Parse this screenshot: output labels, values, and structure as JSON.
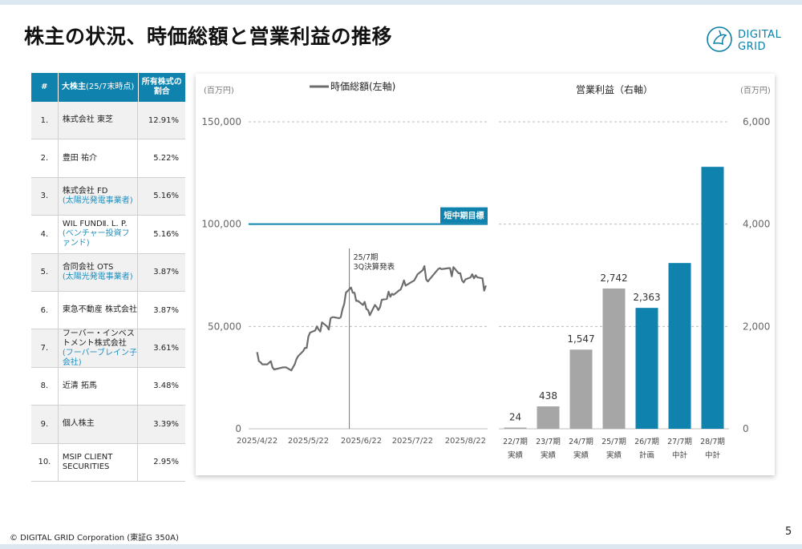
{
  "title": "株主の状況、時価総額と営業利益の推移",
  "logo": {
    "line1": "DIGITAL",
    "line2": "GRID"
  },
  "table": {
    "headers": {
      "no": "#",
      "holder": "大株主",
      "holder_sub": "(25/7末時点)",
      "ratio_line1": "所有株式の",
      "ratio_line2": "割合"
    },
    "rows": [
      {
        "no": "1.",
        "name": "株式会社 東芝",
        "sub": "",
        "ratio": "12.91%"
      },
      {
        "no": "2.",
        "name": "豊田 祐介",
        "sub": "",
        "ratio": "5.22%"
      },
      {
        "no": "3.",
        "name": "株式会社 FD",
        "sub": "(太陽光発電事業者)",
        "ratio": "5.16%"
      },
      {
        "no": "4.",
        "name": "WIL FUNDⅡ. L. P.",
        "sub": "(ベンチャー投資ファンド)",
        "ratio": "5.16%"
      },
      {
        "no": "5.",
        "name": "合同会社 OTS",
        "sub": "(太陽光発電事業者)",
        "ratio": "3.87%"
      },
      {
        "no": "6.",
        "name": "東急不動産 株式会社",
        "sub": "",
        "ratio": "3.87%"
      },
      {
        "no": "7.",
        "name": "フーバー・インベストメント株式会社",
        "sub": "(フーバーブレイン子会社)",
        "ratio": "3.61%"
      },
      {
        "no": "8.",
        "name": "近清 拓馬",
        "sub": "",
        "ratio": "3.48%"
      },
      {
        "no": "9.",
        "name": "個人株主",
        "sub": "",
        "ratio": "3.39%"
      },
      {
        "no": "10.",
        "name": "MSIP CLIENT SECURITIES",
        "sub": "",
        "ratio": "2.95%"
      }
    ]
  },
  "chart_data": [
    {
      "type": "line",
      "legend": "時価総額(左軸)",
      "unit_label": "(百万円)",
      "ylim": [
        0,
        150000
      ],
      "yticks": [
        "0",
        "50,000",
        "100,000",
        "150,000"
      ],
      "xtick_labels": [
        "2025/4/22",
        "2025/5/22",
        "2025/6/22",
        "2025/7/22",
        "2025/8/22"
      ],
      "target_line": {
        "value": 100000,
        "label": "短中期目標"
      },
      "event": {
        "date": "2025/6/15",
        "label_line1": "25/7期",
        "label_line2": "3Q決算発表"
      },
      "grid": "horizontal dashed",
      "series": [
        {
          "name": "時価総額(左軸)",
          "color": "#6d6d6d",
          "x": [
            "2025/4/22",
            "2025/4/23",
            "2025/4/24",
            "2025/4/25",
            "2025/4/28",
            "2025/4/30",
            "2025/5/1",
            "2025/5/2",
            "2025/5/7",
            "2025/5/8",
            "2025/5/9",
            "2025/5/12",
            "2025/5/13",
            "2025/5/14",
            "2025/5/15",
            "2025/5/16",
            "2025/5/19",
            "2025/5/20",
            "2025/5/21",
            "2025/5/22",
            "2025/5/23",
            "2025/5/26",
            "2025/5/27",
            "2025/5/28",
            "2025/5/29",
            "2025/5/30",
            "2025/6/2",
            "2025/6/3",
            "2025/6/4",
            "2025/6/5",
            "2025/6/6",
            "2025/6/9",
            "2025/6/10",
            "2025/6/11",
            "2025/6/12",
            "2025/6/13",
            "2025/6/16",
            "2025/6/17",
            "2025/6/18",
            "2025/6/19",
            "2025/6/20",
            "2025/6/23",
            "2025/6/24",
            "2025/6/25",
            "2025/6/26",
            "2025/6/27",
            "2025/6/30",
            "2025/7/1",
            "2025/7/2",
            "2025/7/3",
            "2025/7/4",
            "2025/7/7",
            "2025/7/8",
            "2025/7/9",
            "2025/7/10",
            "2025/7/11",
            "2025/7/14",
            "2025/7/15",
            "2025/7/16",
            "2025/7/17",
            "2025/7/18",
            "2025/7/22",
            "2025/7/23",
            "2025/7/24",
            "2025/7/25",
            "2025/7/28",
            "2025/7/29",
            "2025/7/30",
            "2025/7/31",
            "2025/8/1",
            "2025/8/4",
            "2025/8/5",
            "2025/8/6",
            "2025/8/7",
            "2025/8/8",
            "2025/8/12",
            "2025/8/13",
            "2025/8/14",
            "2025/8/15",
            "2025/8/18",
            "2025/8/19",
            "2025/8/20",
            "2025/8/21",
            "2025/8/22",
            "2025/8/25",
            "2025/8/26",
            "2025/8/27",
            "2025/8/28",
            "2025/8/29",
            "2025/9/1",
            "2025/9/2",
            "2025/9/3"
          ],
          "values": [
            37500,
            33000,
            32500,
            31500,
            31500,
            33000,
            30000,
            29000,
            30000,
            30000,
            30000,
            28500,
            30000,
            31500,
            34000,
            35500,
            38000,
            39500,
            39500,
            45000,
            47000,
            48000,
            50000,
            48500,
            47500,
            52000,
            50000,
            48500,
            54000,
            54500,
            54500,
            54000,
            54500,
            58500,
            61000,
            66500,
            69000,
            66500,
            66500,
            62500,
            62500,
            60500,
            62000,
            58500,
            58000,
            55500,
            60500,
            59500,
            58000,
            59500,
            63000,
            63500,
            67000,
            64500,
            66000,
            65500,
            67500,
            68000,
            70000,
            72500,
            70000,
            72000,
            72500,
            74000,
            75500,
            77500,
            79500,
            73000,
            72000,
            73000,
            76000,
            77000,
            78000,
            78500,
            78000,
            78500,
            78500,
            74500,
            79000,
            76000,
            76000,
            72500,
            71500,
            73000,
            74000,
            75500,
            73500,
            75000,
            74000,
            73500,
            67500,
            70000
          ]
        }
      ]
    },
    {
      "type": "bar",
      "title": "営業利益（右軸）",
      "unit_label": "(百万円)",
      "ylim": [
        0,
        6000
      ],
      "yticks": [
        "0",
        "2,000",
        "4,000",
        "6,000"
      ],
      "categories": [
        {
          "line1": "22/7期",
          "line2": "実績"
        },
        {
          "line1": "23/7期",
          "line2": "実績"
        },
        {
          "line1": "24/7期",
          "line2": "実績"
        },
        {
          "line1": "25/7期",
          "line2": "実績"
        },
        {
          "line1": "26/7期",
          "line2": "計画"
        },
        {
          "line1": "27/7期",
          "line2": "中計"
        },
        {
          "line1": "28/7期",
          "line2": "中計"
        }
      ],
      "values": [
        24,
        438,
        1547,
        2742,
        2363,
        3240,
        5120
      ],
      "data_labels": [
        "24",
        "438",
        "1,547",
        "2,742",
        "2,363",
        "",
        ""
      ],
      "colors": [
        "#a6a6a6",
        "#a6a6a6",
        "#a6a6a6",
        "#a6a6a6",
        "#0f82ad",
        "#0f82ad",
        "#0f82ad"
      ],
      "grid": "horizontal dashed"
    }
  ],
  "footer": "© DIGITAL GRID Corporation (東証G 350A)",
  "page_number": "5",
  "colors": {
    "accent": "#0f82ad",
    "actual_bar": "#a6a6a6",
    "line": "#6d6d6d"
  }
}
